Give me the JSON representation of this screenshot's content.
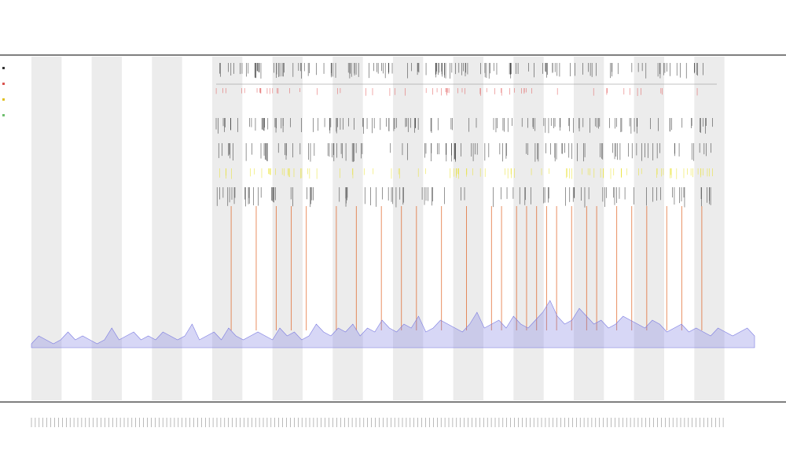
{
  "header": {
    "line1": "",
    "line2": "",
    "line3": ""
  },
  "chart_data": {
    "type": "area",
    "title": "",
    "subtitle": "",
    "xlabel": "",
    "ylabel": "",
    "legend_placement": "top-left",
    "legend": [
      {
        "name": "",
        "color": "#333333"
      },
      {
        "name": "",
        "color": "#d9534f"
      },
      {
        "name": "",
        "color": "#e0c020"
      },
      {
        "name": "",
        "color": "#6fbf6f"
      }
    ],
    "track_labels": [
      "",
      ""
    ],
    "colors": {
      "coverage": "#7b7be0",
      "hotspot": "#e06020",
      "band": "#ececec",
      "feature": "#222222",
      "marker": "#e05050",
      "highlight": "#e8e020"
    },
    "bands": 24,
    "x_tick_count": 180,
    "series": [
      {
        "type": "area",
        "values": [
          1,
          3,
          2,
          1,
          2,
          4,
          2,
          3,
          2,
          1,
          2,
          5,
          2,
          3,
          4,
          2,
          3,
          2,
          4,
          3,
          2,
          3,
          6,
          2,
          3,
          4,
          2,
          5,
          3,
          2,
          3,
          4,
          3,
          2,
          5,
          3,
          4,
          2,
          3,
          6,
          4,
          3,
          5,
          4,
          6,
          3,
          5,
          4,
          7,
          5,
          4,
          6,
          5,
          8,
          4,
          5,
          7,
          6,
          5,
          4,
          6,
          9,
          5,
          6,
          7,
          5,
          8,
          6,
          5,
          7,
          9,
          12,
          8,
          6,
          7,
          10,
          8,
          6,
          7,
          5,
          6,
          8,
          7,
          6,
          5,
          7,
          6,
          4,
          5,
          6,
          4,
          5,
          4,
          3,
          5,
          4,
          3,
          4,
          5,
          3
        ]
      }
    ],
    "hotspots": [
      0.03,
      0.08,
      0.12,
      0.15,
      0.18,
      0.24,
      0.28,
      0.33,
      0.37,
      0.4,
      0.45,
      0.5,
      0.55,
      0.57,
      0.6,
      0.62,
      0.64,
      0.66,
      0.68,
      0.71,
      0.74,
      0.76,
      0.8,
      0.83,
      0.86,
      0.9,
      0.93,
      0.97
    ]
  }
}
